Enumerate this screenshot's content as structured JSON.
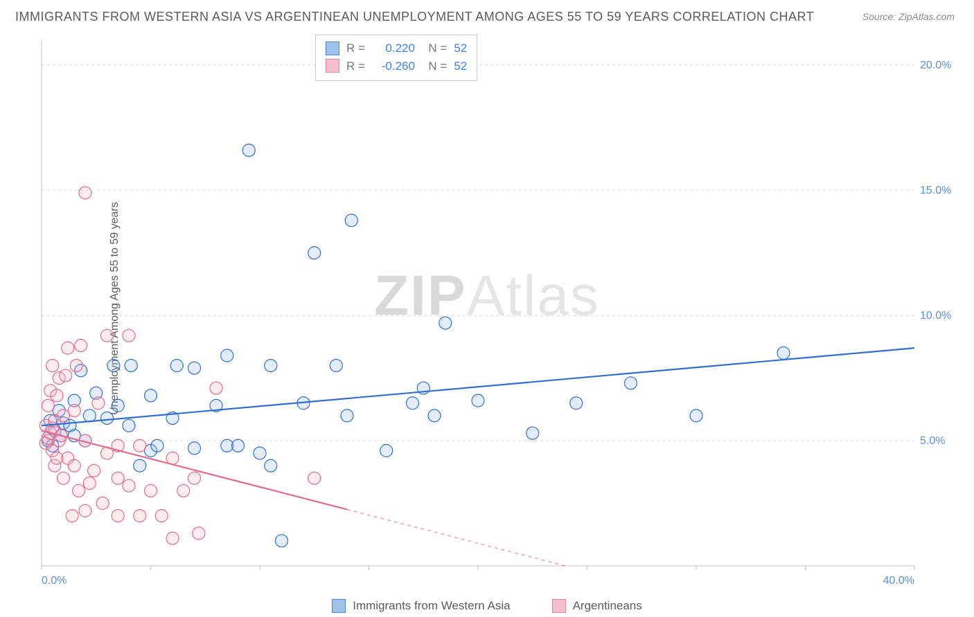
{
  "title": "IMMIGRANTS FROM WESTERN ASIA VS ARGENTINEAN UNEMPLOYMENT AMONG AGES 55 TO 59 YEARS CORRELATION CHART",
  "source": "Source: ZipAtlas.com",
  "ylabel": "Unemployment Among Ages 55 to 59 years",
  "watermark": {
    "bold": "ZIP",
    "rest": "Atlas"
  },
  "chart": {
    "type": "scatter",
    "background_color": "#ffffff",
    "grid_color": "#d9d9d9",
    "grid_dash": "4 4",
    "axis_color": "#c0c0c0",
    "tick_font_color": "#5b8fd6",
    "tick_font_size": 16,
    "xlim": [
      0,
      40
    ],
    "ylim": [
      0,
      21
    ],
    "x_ticks": [
      {
        "v": 0,
        "label": "0.0%"
      },
      {
        "v": 40,
        "label": "40.0%"
      }
    ],
    "y_ticks": [
      {
        "v": 5,
        "label": "5.0%"
      },
      {
        "v": 10,
        "label": "10.0%"
      },
      {
        "v": 15,
        "label": "15.0%"
      },
      {
        "v": 20,
        "label": "20.0%"
      }
    ],
    "marker_radius": 9,
    "marker_stroke_width": 1.2,
    "marker_fill_opacity": 0.25,
    "line_width": 2.2,
    "series": [
      {
        "name": "Immigrants from Western Asia",
        "color_stroke": "#2f6fd0",
        "color_fill": "#8fb8e8",
        "R": "0.220",
        "N": "52",
        "trend": {
          "x1": 0,
          "y1": 5.6,
          "x2": 40,
          "y2": 8.7,
          "solid_until_x": 40
        },
        "points": [
          [
            0.3,
            5.0
          ],
          [
            0.4,
            5.8
          ],
          [
            0.5,
            4.8
          ],
          [
            0.6,
            5.4
          ],
          [
            0.8,
            6.2
          ],
          [
            0.9,
            5.2
          ],
          [
            1.0,
            5.7
          ],
          [
            1.3,
            5.6
          ],
          [
            1.5,
            6.6
          ],
          [
            1.5,
            5.2
          ],
          [
            1.8,
            7.8
          ],
          [
            2.0,
            5.0
          ],
          [
            2.2,
            6.0
          ],
          [
            2.5,
            6.9
          ],
          [
            3.0,
            5.9
          ],
          [
            3.3,
            8.0
          ],
          [
            3.5,
            6.4
          ],
          [
            4.0,
            5.6
          ],
          [
            4.1,
            8.0
          ],
          [
            4.5,
            4.0
          ],
          [
            5.0,
            4.6
          ],
          [
            5.0,
            6.8
          ],
          [
            5.3,
            4.8
          ],
          [
            6.0,
            5.9
          ],
          [
            6.2,
            8.0
          ],
          [
            7.0,
            4.7
          ],
          [
            7.0,
            7.9
          ],
          [
            8.0,
            6.4
          ],
          [
            8.5,
            4.8
          ],
          [
            8.5,
            8.4
          ],
          [
            9.0,
            4.8
          ],
          [
            9.5,
            16.6
          ],
          [
            10.0,
            4.5
          ],
          [
            10.5,
            4.0
          ],
          [
            10.5,
            8.0
          ],
          [
            11.0,
            1.0
          ],
          [
            12.0,
            6.5
          ],
          [
            12.5,
            12.5
          ],
          [
            13.5,
            8.0
          ],
          [
            14.0,
            6.0
          ],
          [
            14.2,
            13.8
          ],
          [
            15.8,
            4.6
          ],
          [
            17.0,
            6.5
          ],
          [
            17.5,
            7.1
          ],
          [
            18.0,
            6.0
          ],
          [
            18.5,
            9.7
          ],
          [
            20.0,
            6.6
          ],
          [
            22.5,
            5.3
          ],
          [
            24.5,
            6.5
          ],
          [
            27.0,
            7.3
          ],
          [
            30.0,
            6.0
          ],
          [
            34.0,
            8.5
          ]
        ]
      },
      {
        "name": "Argentineans",
        "color_stroke": "#e36a8b",
        "color_fill": "#f4b4c4",
        "R": "-0.260",
        "N": "52",
        "trend": {
          "x1": 0,
          "y1": 5.4,
          "x2": 24,
          "y2": 0.0,
          "solid_until_x": 14
        },
        "points": [
          [
            0.2,
            4.9
          ],
          [
            0.2,
            5.6
          ],
          [
            0.3,
            5.1
          ],
          [
            0.3,
            6.4
          ],
          [
            0.4,
            5.3
          ],
          [
            0.4,
            7.0
          ],
          [
            0.5,
            5.5
          ],
          [
            0.5,
            4.6
          ],
          [
            0.5,
            8.0
          ],
          [
            0.6,
            5.8
          ],
          [
            0.6,
            4.0
          ],
          [
            0.7,
            6.8
          ],
          [
            0.7,
            4.3
          ],
          [
            0.8,
            5.0
          ],
          [
            0.8,
            7.5
          ],
          [
            0.9,
            5.2
          ],
          [
            1.0,
            6.0
          ],
          [
            1.0,
            3.5
          ],
          [
            1.1,
            7.6
          ],
          [
            1.2,
            4.3
          ],
          [
            1.2,
            8.7
          ],
          [
            1.4,
            2.0
          ],
          [
            1.5,
            6.2
          ],
          [
            1.5,
            4.0
          ],
          [
            1.6,
            8.0
          ],
          [
            1.7,
            3.0
          ],
          [
            1.8,
            8.8
          ],
          [
            2.0,
            2.2
          ],
          [
            2.0,
            5.0
          ],
          [
            2.0,
            14.9
          ],
          [
            2.2,
            3.3
          ],
          [
            2.4,
            3.8
          ],
          [
            2.6,
            6.5
          ],
          [
            2.8,
            2.5
          ],
          [
            3.0,
            9.2
          ],
          [
            3.0,
            4.5
          ],
          [
            3.5,
            2.0
          ],
          [
            3.5,
            3.5
          ],
          [
            3.5,
            4.8
          ],
          [
            4.0,
            9.2
          ],
          [
            4.0,
            3.2
          ],
          [
            4.5,
            2.0
          ],
          [
            4.5,
            4.8
          ],
          [
            5.0,
            3.0
          ],
          [
            5.5,
            2.0
          ],
          [
            6.0,
            1.1
          ],
          [
            6.0,
            4.3
          ],
          [
            6.5,
            3.0
          ],
          [
            7.0,
            3.5
          ],
          [
            7.2,
            1.3
          ],
          [
            8.0,
            7.1
          ],
          [
            12.5,
            3.5
          ]
        ]
      }
    ],
    "legend_bottom": [
      "Immigrants from Western Asia",
      "Argentineans"
    ]
  }
}
